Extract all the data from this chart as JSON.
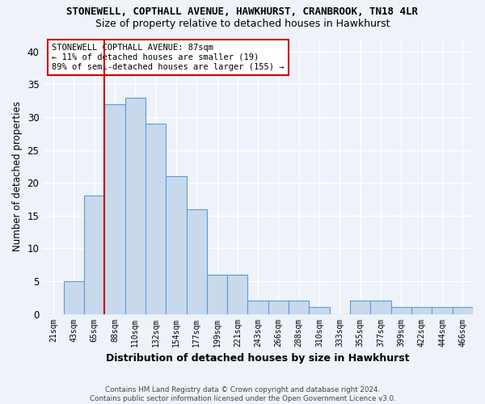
{
  "title1": "STONEWELL, COPTHALL AVENUE, HAWKHURST, CRANBROOK, TN18 4LR",
  "title2": "Size of property relative to detached houses in Hawkhurst",
  "xlabel": "Distribution of detached houses by size in Hawkhurst",
  "ylabel": "Number of detached properties",
  "bins": [
    "21sqm",
    "43sqm",
    "65sqm",
    "88sqm",
    "110sqm",
    "132sqm",
    "154sqm",
    "177sqm",
    "199sqm",
    "221sqm",
    "243sqm",
    "266sqm",
    "288sqm",
    "310sqm",
    "333sqm",
    "355sqm",
    "377sqm",
    "399sqm",
    "422sqm",
    "444sqm",
    "466sqm"
  ],
  "values": [
    0,
    5,
    18,
    32,
    33,
    29,
    21,
    16,
    6,
    6,
    2,
    2,
    2,
    1,
    0,
    2,
    2,
    1,
    1,
    1,
    1
  ],
  "bar_color": "#c8d9ec",
  "bar_edge_color": "#5b9bd5",
  "red_line_index": 3,
  "ylim": [
    0,
    42
  ],
  "yticks": [
    0,
    5,
    10,
    15,
    20,
    25,
    30,
    35,
    40
  ],
  "annotation_title": "STONEWELL COPTHALL AVENUE: 87sqm",
  "annotation_line1": "← 11% of detached houses are smaller (19)",
  "annotation_line2": "89% of semi-detached houses are larger (155) →",
  "footer1": "Contains HM Land Registry data © Crown copyright and database right 2024.",
  "footer2": "Contains public sector information licensed under the Open Government Licence v3.0.",
  "bg_color": "#eef2f9",
  "grid_color": "#ffffff",
  "annotation_box_color": "#ffffff",
  "annotation_box_edge": "#cc0000"
}
